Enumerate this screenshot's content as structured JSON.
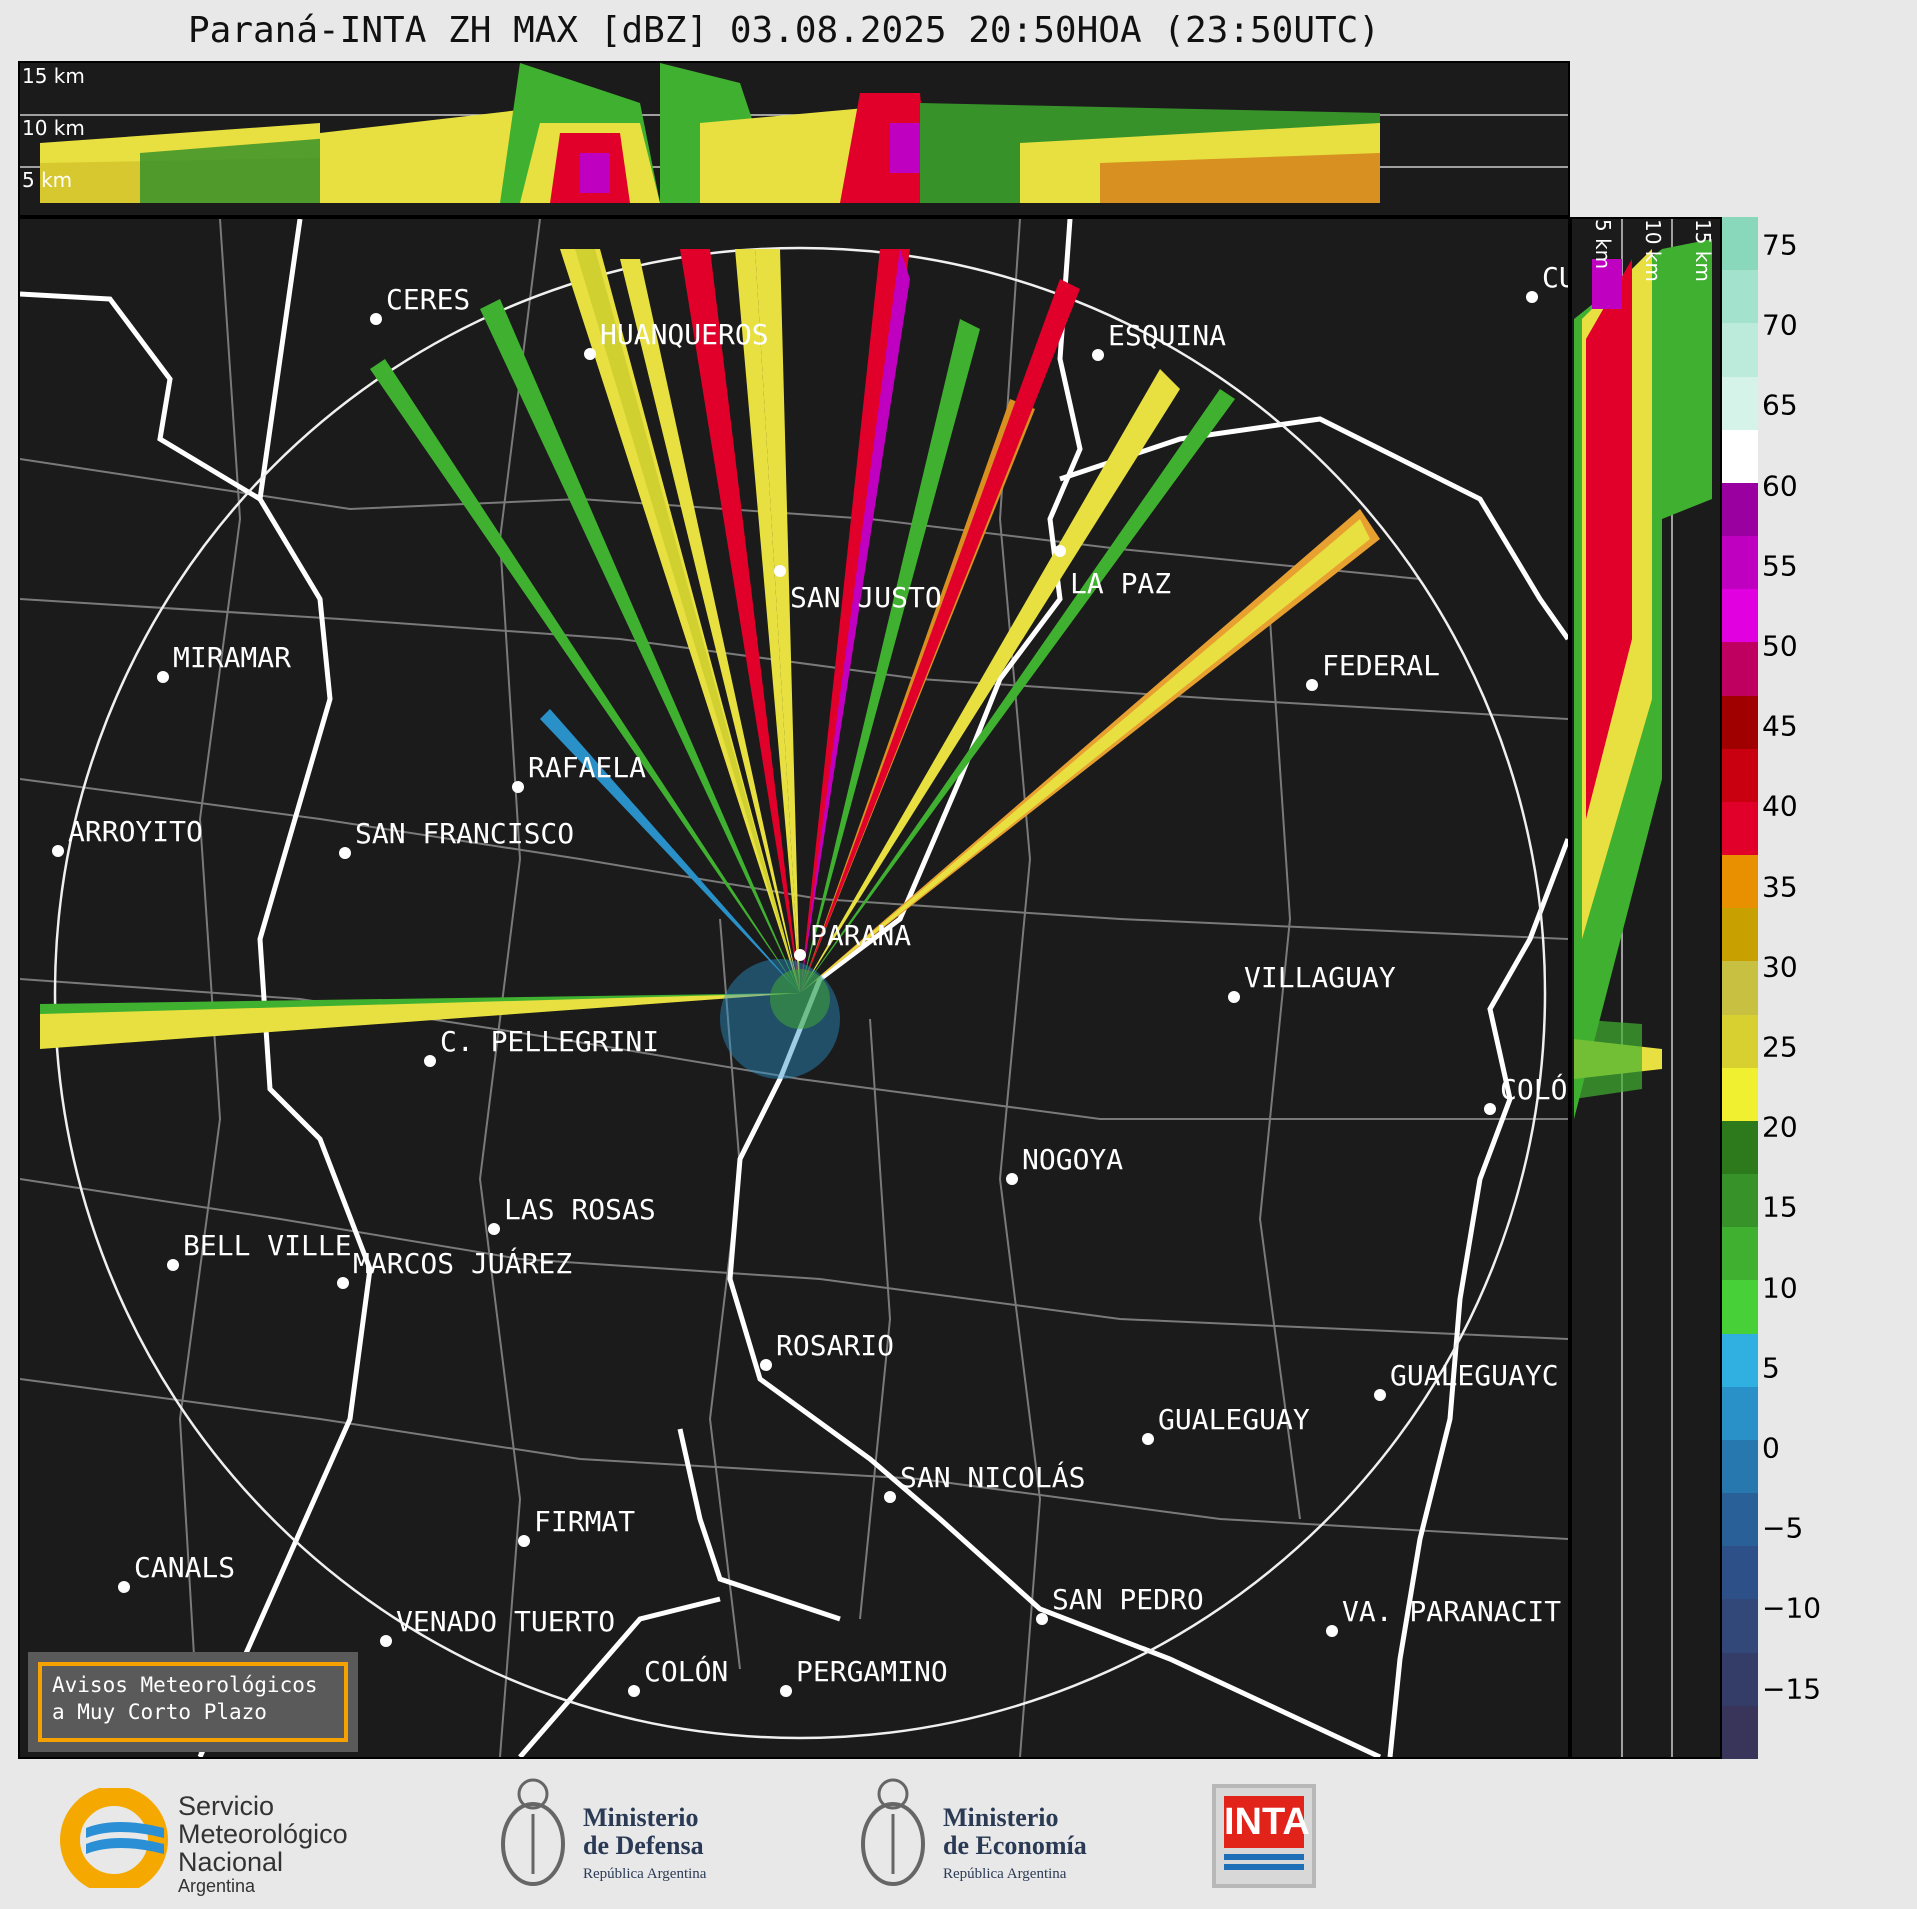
{
  "title": "Paraná-INTA ZH MAX [dBZ] 03.08.2025 20:50HOA (23:50UTC)",
  "top_panel": {
    "height_labels": [
      "15 km",
      "10 km",
      "5 km"
    ]
  },
  "side_panel": {
    "height_labels": [
      "5 km",
      "10 km",
      "15 km"
    ]
  },
  "colorbar": {
    "ticks": [
      "75",
      "70",
      "65",
      "60",
      "55",
      "50",
      "45",
      "40",
      "35",
      "30",
      "25",
      "20",
      "15",
      "10",
      "5",
      "0",
      "−5",
      "−10",
      "−15"
    ],
    "colors": [
      "#8ad8bc",
      "#a3e2cc",
      "#bceadb",
      "#d6f3ea",
      "#ffffff",
      "#9a00a0",
      "#c000c0",
      "#e000e0",
      "#c00060",
      "#a00000",
      "#c80010",
      "#e0002a",
      "#e89000",
      "#c8a000",
      "#c8c040",
      "#d8d030",
      "#f0f030",
      "#2c7a1c",
      "#38922a",
      "#40b030",
      "#48d038",
      "#30b0e0",
      "#2a90c8",
      "#2878b0",
      "#2a6098",
      "#2e5088",
      "#324878",
      "#343c68",
      "#38345a"
    ]
  },
  "cities": [
    {
      "name": "CERES"
    },
    {
      "name": "HUANQUEROS"
    },
    {
      "name": "ESQUINA"
    },
    {
      "name": "CU"
    },
    {
      "name": "SAN JUSTO"
    },
    {
      "name": "LA PAZ"
    },
    {
      "name": "MIRAMAR"
    },
    {
      "name": "FEDERAL"
    },
    {
      "name": "RAFAELA"
    },
    {
      "name": "ARROYITO"
    },
    {
      "name": "SAN FRANCISCO"
    },
    {
      "name": "PARANA"
    },
    {
      "name": "VILLAGUAY"
    },
    {
      "name": "C. PELLEGRINI"
    },
    {
      "name": "COLÓ"
    },
    {
      "name": "NOGOYA"
    },
    {
      "name": "LAS ROSAS"
    },
    {
      "name": "BELL VILLE"
    },
    {
      "name": "MARCOS JUÁREZ"
    },
    {
      "name": "ROSARIO"
    },
    {
      "name": "GUALEGUAYC"
    },
    {
      "name": "GUALEGUAY"
    },
    {
      "name": "SAN NICOLÁS"
    },
    {
      "name": "FIRMAT"
    },
    {
      "name": "CANALS"
    },
    {
      "name": "SAN PEDRO"
    },
    {
      "name": "VENADO TUERTO"
    },
    {
      "name": "VA. PARANACIT"
    },
    {
      "name": "COLÓN"
    },
    {
      "name": "PERGAMINO"
    }
  ],
  "notice": {
    "line1": "Avisos Meteorológicos",
    "line2": "a Muy Corto Plazo"
  },
  "logos": {
    "smn": {
      "line1": "Servicio",
      "line2": "Meteorológico",
      "line3": "Nacional",
      "line4": "Argentina"
    },
    "defensa": {
      "line1": "Ministerio",
      "line2": "de Defensa",
      "line3": "República Argentina"
    },
    "economia": {
      "line1": "Ministerio",
      "line2": "de Economía",
      "line3": "República Argentina"
    },
    "inta": {
      "label": "INTA"
    }
  }
}
